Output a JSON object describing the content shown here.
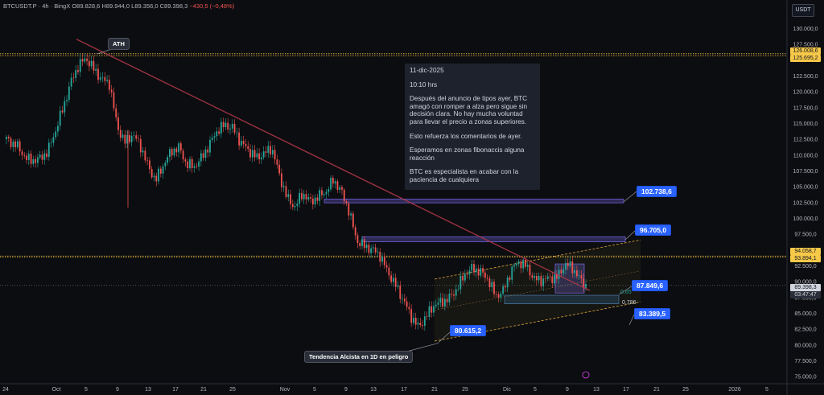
{
  "header": {
    "symbol": "BTCUSDT.P · 4h · BingX",
    "open": "O89.828,6",
    "high": "H89.944,0",
    "low": "L89.356,0",
    "close": "C89.398,3",
    "change": "−430,5 (−0,48%)",
    "currency": "USDT"
  },
  "note": {
    "lines": [
      "11-dic-2025",
      "10:10 hrs",
      "Después del anuncio de tipos ayer, BTC amagó con romper a alza pero sigue sin decisión clara. No hay mucha voluntad para llevar el precio a zonas superiores.",
      "Esto refuerza los comentarios de ayer.",
      "Esperamos en zonas fibonaccis alguna reacción",
      "BTC es especialista en acabar con la paciencia de cualquiera"
    ]
  },
  "callouts": {
    "ath": "ATH",
    "trend": "Tendencia Alcista en 1D en peligro",
    "fib_small": "0,786",
    "fib_small2": "0,65"
  },
  "price_tags": {
    "ath_high": "126.008,6",
    "ath_low": "125.695,2",
    "res_high": "94.058,7",
    "res_low": "93.894,1",
    "last_price": "89.398,3",
    "countdown": "03:47:47"
  },
  "chart_data": {
    "type": "candlestick",
    "x_ticks": [
      "24",
      "Oct",
      "5",
      "9",
      "13",
      "17",
      "21",
      "25",
      "Nov",
      "5",
      "9",
      "13",
      "17",
      "21",
      "25",
      "Dic",
      "5",
      "9",
      "13",
      "17",
      "21",
      "25",
      "2026",
      "5"
    ],
    "y_ticks": [
      130000,
      127500,
      122500,
      120000,
      117500,
      115000,
      112500,
      110000,
      107500,
      105000,
      102500,
      100000,
      97500,
      95000,
      92500,
      90000,
      87500,
      85000,
      82500,
      80000,
      77500,
      75000
    ],
    "y_tick_labels": [
      "130.000,0",
      "127.500,0",
      "122.500,0",
      "120.000,0",
      "117.500,0",
      "115.000,0",
      "112.500,0",
      "110.000,0",
      "107.500,0",
      "105.000,0",
      "102.500,0",
      "100.000,0",
      "97.500,0",
      "95.000,0",
      "92.500,0",
      "90.000,0",
      "87.500,0",
      "85.000,0",
      "82.500,0",
      "80.000,0",
      "77.500,0",
      "75.000,0"
    ],
    "ylim": [
      74000,
      134500
    ],
    "price_path": [
      [
        0,
        112500
      ],
      [
        0.02,
        111500
      ],
      [
        0.04,
        109300
      ],
      [
        0.06,
        109200
      ],
      [
        0.08,
        110500
      ],
      [
        0.095,
        113800
      ],
      [
        0.11,
        117500
      ],
      [
        0.125,
        121500
      ],
      [
        0.14,
        124200
      ],
      [
        0.155,
        125300
      ],
      [
        0.17,
        123500
      ],
      [
        0.185,
        122000
      ],
      [
        0.2,
        121300
      ],
      [
        0.215,
        114500
      ],
      [
        0.23,
        112000
      ],
      [
        0.245,
        113300
      ],
      [
        0.26,
        111500
      ],
      [
        0.275,
        108200
      ],
      [
        0.29,
        106000
      ],
      [
        0.305,
        108500
      ],
      [
        0.32,
        110600
      ],
      [
        0.335,
        111200
      ],
      [
        0.35,
        108500
      ],
      [
        0.365,
        108200
      ],
      [
        0.38,
        109700
      ],
      [
        0.395,
        111800
      ],
      [
        0.41,
        114000
      ],
      [
        0.425,
        114800
      ],
      [
        0.44,
        114200
      ],
      [
        0.455,
        112000
      ],
      [
        0.47,
        110800
      ],
      [
        0.485,
        109600
      ],
      [
        0.5,
        110200
      ],
      [
        0.515,
        111200
      ],
      [
        0.53,
        106800
      ],
      [
        0.545,
        103200
      ],
      [
        0.56,
        101800
      ],
      [
        0.575,
        104000
      ],
      [
        0.59,
        102600
      ],
      [
        0.605,
        103400
      ],
      [
        0.62,
        104200
      ],
      [
        0.635,
        106100
      ],
      [
        0.65,
        104300
      ],
      [
        0.665,
        101200
      ],
      [
        0.68,
        96500
      ],
      [
        0.695,
        95600
      ],
      [
        0.71,
        95100
      ],
      [
        0.725,
        94200
      ],
      [
        0.74,
        91600
      ],
      [
        0.755,
        89500
      ],
      [
        0.77,
        87200
      ],
      [
        0.785,
        84600
      ],
      [
        0.8,
        82800
      ],
      [
        0.815,
        84500
      ],
      [
        0.83,
        86300
      ],
      [
        0.845,
        86800
      ],
      [
        0.86,
        87400
      ],
      [
        0.875,
        88900
      ],
      [
        0.89,
        91200
      ],
      [
        0.905,
        92100
      ],
      [
        0.92,
        91600
      ],
      [
        0.935,
        90400
      ],
      [
        0.95,
        87700
      ],
      [
        0.965,
        88600
      ],
      [
        0.98,
        91800
      ],
      [
        0.995,
        93200
      ],
      [
        1.01,
        92400
      ],
      [
        1.025,
        90400
      ],
      [
        1.04,
        90200
      ],
      [
        1.055,
        90600
      ],
      [
        1.07,
        90700
      ],
      [
        1.085,
        92800
      ],
      [
        1.1,
        92100
      ],
      [
        1.115,
        90200
      ],
      [
        1.125,
        89398
      ]
    ],
    "levels": [
      {
        "label": "102.738,6",
        "value": 102738.6
      },
      {
        "label": "96.705,0",
        "value": 96705.0
      },
      {
        "label": "87.849,6",
        "value": 87849.6
      },
      {
        "label": "83.389,5",
        "value": 83389.5
      },
      {
        "label": "80.615,2",
        "value": 80615.2
      }
    ],
    "ath_lines": [
      126008.6,
      125695.2
    ],
    "resistance_lines": [
      94058.7,
      93894.1
    ],
    "last_price": 89398.3,
    "colors": {
      "up": "#26a69a",
      "down": "#ef5350",
      "text": "#d1d4dc",
      "bg": "#0c0d10",
      "zone": "#6d5fd6",
      "label": "#2962ff",
      "trend": "#b2384a",
      "channel": "#e0a63a",
      "yellow": "#f7c948"
    }
  }
}
